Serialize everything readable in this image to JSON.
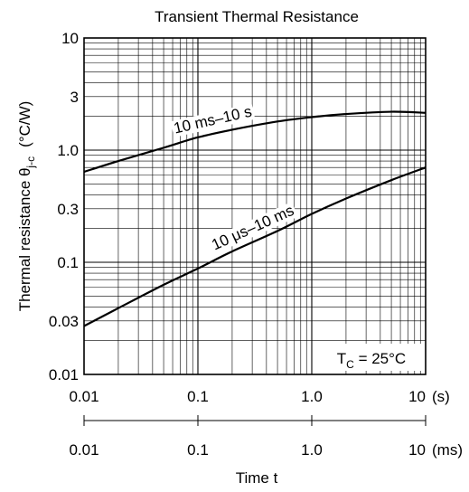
{
  "chart_data": {
    "type": "line",
    "title": "Transient Thermal Resistance",
    "ylabel": {
      "main": "Thermal resistance  θ",
      "sub": "j-c",
      "unit": "(°C/W)"
    },
    "xlabel": "Time  t",
    "x_scale": "log",
    "y_scale": "log",
    "xlim": [
      0.01,
      10
    ],
    "ylim": [
      0.01,
      10
    ],
    "grid": true,
    "y_ticks": [
      {
        "value": 10,
        "label": "10"
      },
      {
        "value": 3,
        "label": "3"
      },
      {
        "value": 1,
        "label": "1.0"
      },
      {
        "value": 0.3,
        "label": "0.3"
      },
      {
        "value": 0.1,
        "label": "0.1"
      },
      {
        "value": 0.03,
        "label": "0.03"
      },
      {
        "value": 0.01,
        "label": "0.01"
      }
    ],
    "x_ticks_s": [
      {
        "value": 0.01,
        "label": "0.01"
      },
      {
        "value": 0.1,
        "label": "0.1"
      },
      {
        "value": 1,
        "label": "1.0"
      },
      {
        "value": 10,
        "label": "10"
      }
    ],
    "x_unit_s": "(s)",
    "x_ticks_ms": [
      {
        "value": 0.01,
        "label": "0.01"
      },
      {
        "value": 0.1,
        "label": "0.1"
      },
      {
        "value": 1,
        "label": "1.0"
      },
      {
        "value": 10,
        "label": "10"
      }
    ],
    "x_unit_ms": "(ms)",
    "annotation": {
      "main": "T",
      "sub": "C",
      "rest": " = 25°C"
    },
    "series": [
      {
        "name": "10 ms–10 s",
        "x": [
          0.01,
          0.02,
          0.05,
          0.1,
          0.2,
          0.5,
          1,
          2,
          5,
          10
        ],
        "y": [
          0.64,
          0.8,
          1.05,
          1.3,
          1.52,
          1.8,
          1.97,
          2.1,
          2.2,
          2.15
        ]
      },
      {
        "name": "10 μs–10 ms",
        "x": [
          0.01,
          0.02,
          0.05,
          0.1,
          0.2,
          0.5,
          1,
          2,
          5,
          10
        ],
        "y": [
          0.027,
          0.039,
          0.063,
          0.088,
          0.125,
          0.19,
          0.27,
          0.37,
          0.54,
          0.7
        ]
      }
    ]
  }
}
